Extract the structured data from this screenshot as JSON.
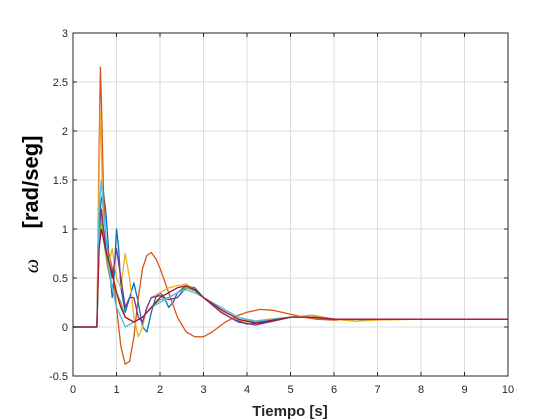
{
  "chart_data": {
    "type": "line",
    "xlabel": "Tiempo [s]",
    "ylabel": "[rad/seg]",
    "ylabel_symbol": "ω",
    "xlim": [
      0,
      10
    ],
    "ylim": [
      -0.5,
      3
    ],
    "xticks": [
      "0",
      "1",
      "2",
      "3",
      "4",
      "5",
      "6",
      "7",
      "8",
      "9",
      "10"
    ],
    "yticks": [
      "-0.5",
      "0",
      "0.5",
      "1",
      "1.5",
      "2",
      "2.5",
      "3"
    ],
    "grid": true,
    "series": [
      {
        "color": "#0072BD",
        "points": [
          [
            0,
            0
          ],
          [
            0.5,
            0
          ],
          [
            0.55,
            0
          ],
          [
            0.6,
            1.05
          ],
          [
            0.65,
            1.3
          ],
          [
            0.7,
            1.38
          ],
          [
            0.75,
            1.2
          ],
          [
            0.8,
            0.9
          ],
          [
            0.85,
            0.55
          ],
          [
            0.9,
            0.3
          ],
          [
            0.95,
            0.55
          ],
          [
            1.0,
            1.0
          ],
          [
            1.05,
            0.8
          ],
          [
            1.1,
            0.4
          ],
          [
            1.2,
            0.15
          ],
          [
            1.3,
            0.3
          ],
          [
            1.4,
            0.45
          ],
          [
            1.5,
            0.25
          ],
          [
            1.6,
            0.0
          ],
          [
            1.7,
            -0.05
          ],
          [
            1.8,
            0.15
          ],
          [
            1.9,
            0.3
          ],
          [
            2.0,
            0.35
          ],
          [
            2.1,
            0.3
          ],
          [
            2.2,
            0.2
          ],
          [
            2.3,
            0.25
          ],
          [
            2.4,
            0.35
          ],
          [
            2.6,
            0.42
          ],
          [
            2.8,
            0.4
          ],
          [
            3.0,
            0.3
          ],
          [
            3.3,
            0.2
          ],
          [
            3.6,
            0.1
          ],
          [
            4.0,
            0.03
          ],
          [
            4.5,
            0.05
          ],
          [
            5.0,
            0.1
          ],
          [
            5.5,
            0.12
          ],
          [
            6.0,
            0.08
          ],
          [
            6.5,
            0.06
          ],
          [
            7.0,
            0.08
          ],
          [
            8.0,
            0.08
          ],
          [
            9.0,
            0.08
          ],
          [
            10,
            0.08
          ]
        ]
      },
      {
        "color": "#D95319",
        "points": [
          [
            0,
            0
          ],
          [
            0.5,
            0
          ],
          [
            0.55,
            0
          ],
          [
            0.6,
            1.8
          ],
          [
            0.63,
            2.65
          ],
          [
            0.66,
            2.2
          ],
          [
            0.7,
            1.4
          ],
          [
            0.75,
            0.9
          ],
          [
            0.8,
            0.8
          ],
          [
            0.9,
            0.6
          ],
          [
            1.0,
            0.2
          ],
          [
            1.1,
            -0.2
          ],
          [
            1.2,
            -0.38
          ],
          [
            1.3,
            -0.35
          ],
          [
            1.4,
            -0.1
          ],
          [
            1.5,
            0.3
          ],
          [
            1.6,
            0.6
          ],
          [
            1.7,
            0.73
          ],
          [
            1.8,
            0.76
          ],
          [
            1.9,
            0.7
          ],
          [
            2.0,
            0.6
          ],
          [
            2.2,
            0.35
          ],
          [
            2.4,
            0.1
          ],
          [
            2.6,
            -0.05
          ],
          [
            2.8,
            -0.1
          ],
          [
            3.0,
            -0.1
          ],
          [
            3.2,
            -0.05
          ],
          [
            3.5,
            0.05
          ],
          [
            3.8,
            0.12
          ],
          [
            4.0,
            0.15
          ],
          [
            4.3,
            0.18
          ],
          [
            4.6,
            0.17
          ],
          [
            5.0,
            0.13
          ],
          [
            5.3,
            0.1
          ],
          [
            5.6,
            0.08
          ],
          [
            6.0,
            0.07
          ],
          [
            6.5,
            0.08
          ],
          [
            7.0,
            0.08
          ],
          [
            8.0,
            0.08
          ],
          [
            9.0,
            0.08
          ],
          [
            10,
            0.08
          ]
        ]
      },
      {
        "color": "#EDB120",
        "points": [
          [
            0,
            0
          ],
          [
            0.5,
            0
          ],
          [
            0.55,
            0
          ],
          [
            0.6,
            1.5
          ],
          [
            0.63,
            2.2
          ],
          [
            0.66,
            1.7
          ],
          [
            0.7,
            1.0
          ],
          [
            0.8,
            0.6
          ],
          [
            0.9,
            0.8
          ],
          [
            1.0,
            0.5
          ],
          [
            1.1,
            0.4
          ],
          [
            1.2,
            0.75
          ],
          [
            1.3,
            0.5
          ],
          [
            1.4,
            0.1
          ],
          [
            1.5,
            -0.1
          ],
          [
            1.6,
            0.0
          ],
          [
            1.7,
            0.2
          ],
          [
            1.8,
            0.3
          ],
          [
            2.0,
            0.35
          ],
          [
            2.2,
            0.4
          ],
          [
            2.4,
            0.42
          ],
          [
            2.6,
            0.44
          ],
          [
            2.8,
            0.38
          ],
          [
            3.0,
            0.3
          ],
          [
            3.3,
            0.2
          ],
          [
            3.6,
            0.1
          ],
          [
            4.0,
            0.05
          ],
          [
            4.5,
            0.08
          ],
          [
            5.0,
            0.1
          ],
          [
            5.5,
            0.12
          ],
          [
            6.0,
            0.08
          ],
          [
            6.5,
            0.06
          ],
          [
            7.0,
            0.07
          ],
          [
            8.0,
            0.08
          ],
          [
            9.0,
            0.08
          ],
          [
            10,
            0.08
          ]
        ]
      },
      {
        "color": "#7E2F8E",
        "points": [
          [
            0,
            0
          ],
          [
            0.5,
            0
          ],
          [
            0.55,
            0
          ],
          [
            0.6,
            0.9
          ],
          [
            0.65,
            1.2
          ],
          [
            0.7,
            1.0
          ],
          [
            0.8,
            0.7
          ],
          [
            0.9,
            0.5
          ],
          [
            1.0,
            0.8
          ],
          [
            1.1,
            0.5
          ],
          [
            1.2,
            0.2
          ],
          [
            1.3,
            0.3
          ],
          [
            1.4,
            0.3
          ],
          [
            1.5,
            0.1
          ],
          [
            1.6,
            0.05
          ],
          [
            1.7,
            0.2
          ],
          [
            1.8,
            0.3
          ],
          [
            2.0,
            0.32
          ],
          [
            2.2,
            0.28
          ],
          [
            2.4,
            0.3
          ],
          [
            2.6,
            0.4
          ],
          [
            2.8,
            0.38
          ],
          [
            3.0,
            0.3
          ],
          [
            3.4,
            0.15
          ],
          [
            3.8,
            0.05
          ],
          [
            4.2,
            0.02
          ],
          [
            4.6,
            0.06
          ],
          [
            5.0,
            0.1
          ],
          [
            5.5,
            0.1
          ],
          [
            6.0,
            0.08
          ],
          [
            7.0,
            0.08
          ],
          [
            8.0,
            0.08
          ],
          [
            9.0,
            0.08
          ],
          [
            10,
            0.08
          ]
        ]
      },
      {
        "color": "#77AC30",
        "points": [
          [
            0,
            0
          ],
          [
            0.5,
            0
          ],
          [
            0.55,
            0
          ],
          [
            0.6,
            0.9
          ],
          [
            0.65,
            1.1
          ],
          [
            0.7,
            0.9
          ],
          [
            0.8,
            0.6
          ],
          [
            0.9,
            0.4
          ],
          [
            1.0,
            0.35
          ],
          [
            1.1,
            0.25
          ],
          [
            1.2,
            0.1
          ],
          [
            1.4,
            0.05
          ],
          [
            1.6,
            0.1
          ],
          [
            1.8,
            0.2
          ],
          [
            2.0,
            0.28
          ],
          [
            2.2,
            0.3
          ],
          [
            2.4,
            0.35
          ],
          [
            2.6,
            0.4
          ],
          [
            2.8,
            0.37
          ],
          [
            3.0,
            0.3
          ],
          [
            3.4,
            0.2
          ],
          [
            3.8,
            0.1
          ],
          [
            4.2,
            0.05
          ],
          [
            4.6,
            0.07
          ],
          [
            5.0,
            0.1
          ],
          [
            5.5,
            0.1
          ],
          [
            6.0,
            0.08
          ],
          [
            7.0,
            0.08
          ],
          [
            8.0,
            0.08
          ],
          [
            9.0,
            0.08
          ],
          [
            10,
            0.08
          ]
        ]
      },
      {
        "color": "#4DBEEE",
        "points": [
          [
            0,
            0
          ],
          [
            0.5,
            0
          ],
          [
            0.55,
            0
          ],
          [
            0.6,
            1.2
          ],
          [
            0.65,
            1.5
          ],
          [
            0.7,
            1.2
          ],
          [
            0.8,
            0.7
          ],
          [
            0.9,
            0.4
          ],
          [
            1.0,
            0.2
          ],
          [
            1.1,
            0.1
          ],
          [
            1.2,
            0.0
          ],
          [
            1.4,
            0.05
          ],
          [
            1.6,
            0.1
          ],
          [
            1.8,
            0.2
          ],
          [
            2.0,
            0.25
          ],
          [
            2.2,
            0.3
          ],
          [
            2.4,
            0.35
          ],
          [
            2.6,
            0.38
          ],
          [
            2.8,
            0.35
          ],
          [
            3.0,
            0.3
          ],
          [
            3.4,
            0.2
          ],
          [
            3.8,
            0.1
          ],
          [
            4.2,
            0.06
          ],
          [
            4.6,
            0.08
          ],
          [
            5.0,
            0.1
          ],
          [
            5.5,
            0.1
          ],
          [
            6.0,
            0.08
          ],
          [
            7.0,
            0.08
          ],
          [
            8.0,
            0.08
          ],
          [
            9.0,
            0.08
          ],
          [
            10,
            0.08
          ]
        ]
      },
      {
        "color": "#A2142F",
        "points": [
          [
            0,
            0
          ],
          [
            0.5,
            0
          ],
          [
            0.55,
            0
          ],
          [
            0.6,
            0.8
          ],
          [
            0.65,
            1.0
          ],
          [
            0.7,
            0.9
          ],
          [
            0.8,
            0.7
          ],
          [
            0.9,
            0.55
          ],
          [
            1.0,
            0.35
          ],
          [
            1.1,
            0.2
          ],
          [
            1.2,
            0.1
          ],
          [
            1.4,
            0.05
          ],
          [
            1.6,
            0.1
          ],
          [
            1.8,
            0.2
          ],
          [
            2.0,
            0.3
          ],
          [
            2.2,
            0.35
          ],
          [
            2.4,
            0.4
          ],
          [
            2.6,
            0.42
          ],
          [
            2.8,
            0.38
          ],
          [
            3.0,
            0.3
          ],
          [
            3.4,
            0.18
          ],
          [
            3.8,
            0.08
          ],
          [
            4.2,
            0.04
          ],
          [
            4.6,
            0.07
          ],
          [
            5.0,
            0.1
          ],
          [
            5.5,
            0.1
          ],
          [
            6.0,
            0.08
          ],
          [
            7.0,
            0.08
          ],
          [
            8.0,
            0.08
          ],
          [
            9.0,
            0.08
          ],
          [
            10,
            0.08
          ]
        ]
      }
    ]
  }
}
